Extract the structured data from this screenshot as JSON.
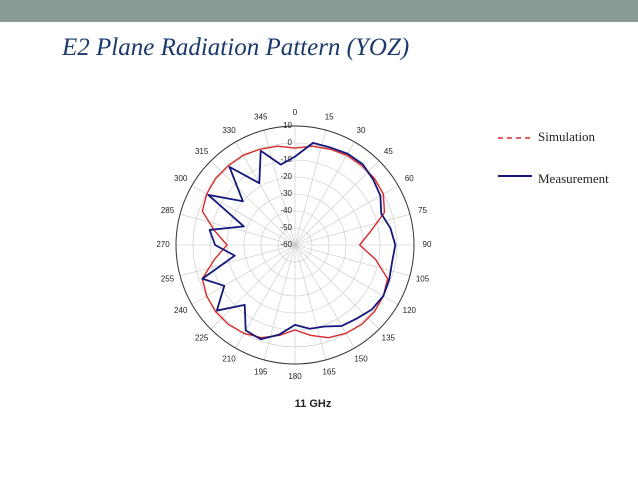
{
  "chart_data": {
    "type": "polar",
    "title": "E2 Plane Radiation Pattern (YOZ)",
    "annotation": "11 GHz",
    "theta": [
      0,
      10,
      20,
      30,
      40,
      50,
      60,
      70,
      80,
      90,
      100,
      110,
      120,
      130,
      140,
      150,
      160,
      170,
      180,
      190,
      200,
      210,
      220,
      230,
      240,
      250,
      260,
      270,
      280,
      290,
      300,
      310,
      320,
      330,
      340,
      350
    ],
    "series": [
      {
        "name": "Simulation",
        "color": "#d62a2a",
        "values": [
          -3,
          -1,
          0,
          1,
          1,
          1,
          0,
          -4,
          -15,
          -22,
          -12,
          -2,
          0,
          1,
          1,
          0,
          -2,
          -6,
          -10,
          -6,
          -2,
          0,
          1,
          1,
          0,
          -2,
          -12,
          -20,
          -12,
          -2,
          0,
          1,
          1,
          1,
          0,
          -1
        ]
      },
      {
        "name": "Measurement",
        "color": "#14187a",
        "values": [
          -8,
          1,
          1,
          2,
          2,
          0,
          -2,
          -6,
          -3,
          -1,
          -2,
          -1,
          0,
          -1,
          -3.5,
          -5,
          -9,
          -10,
          -13,
          -6.5,
          -1,
          -2,
          -14,
          0,
          -12,
          -2,
          -24,
          -13,
          -9,
          -28,
          -1,
          -20,
          0,
          -18,
          -1,
          -12
        ]
      }
    ],
    "rlim": [
      -60,
      10
    ],
    "rticks": [
      -60,
      -50,
      -40,
      -30,
      -20,
      -10,
      0,
      10
    ],
    "thetaticks": [
      0,
      15,
      30,
      45,
      60,
      75,
      90,
      105,
      120,
      135,
      150,
      165,
      180,
      195,
      210,
      225,
      240,
      255,
      270,
      285,
      300,
      315,
      330,
      345
    ],
    "grid": true
  }
}
